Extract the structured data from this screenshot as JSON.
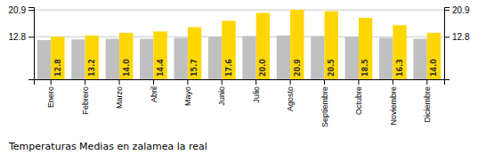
{
  "chart_data": {
    "type": "bar",
    "title": "Temperaturas Medias en zalamea la real",
    "categories": [
      "Enero",
      "Febrero",
      "Marzo",
      "Abril",
      "Mayo",
      "Junio",
      "Julio",
      "Agosto",
      "Septiembre",
      "Octubre",
      "Noviembre",
      "Diciembre"
    ],
    "series": [
      {
        "color": "#C0C0C0",
        "values": [
          11.8,
          12.0,
          12.2,
          12.2,
          12.5,
          12.8,
          13.0,
          13.2,
          13.0,
          12.8,
          12.5,
          12.2
        ]
      },
      {
        "color": "#FFD700",
        "values": [
          12.8,
          13.2,
          14.0,
          14.4,
          15.7,
          17.6,
          20.0,
          20.9,
          20.5,
          18.5,
          16.3,
          14.0
        ],
        "data_labels": true,
        "value_labels": [
          "12.8",
          "13.2",
          "14.0",
          "14.4",
          "15.7",
          "17.6",
          "20.0",
          "20.9",
          "20.5",
          "18.5",
          "16.3",
          "14.0"
        ]
      }
    ],
    "ylim": [
      0,
      21.736
    ],
    "yticks": [
      12.8,
      20.9
    ],
    "grid": true
  }
}
